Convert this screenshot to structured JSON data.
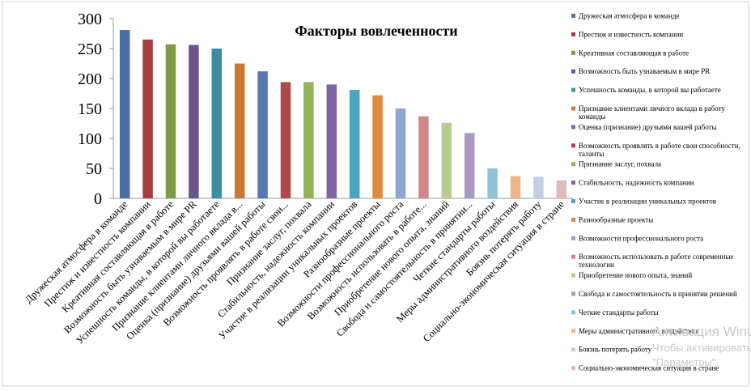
{
  "chart_data": {
    "type": "bar",
    "title": "Факторы вовлеченности",
    "xlabel": "",
    "ylabel": "",
    "ylim": [
      0,
      300
    ],
    "yticks": [
      0,
      50,
      100,
      150,
      200,
      250,
      300
    ],
    "grid": false,
    "legend_position": "right",
    "categories": [
      "Дружеская атмосфера в команде",
      "Престиж и известность компании",
      "Креативная составляющая в работе",
      "Возможность быть узнаваемым в мире PR",
      "Успешность команды, в которой вы работаете",
      "Признание клиентами личного вклада в работу команды",
      "Оценка (признание) друзьями вашей работы",
      "Возможность проявлять в работе свои способности, таланты",
      "Признание заслуг, похвала",
      "Стабильность, надежность компании",
      "Участие в реализации уникальных проектов",
      "Разнообразные проекты",
      "Возможности профессионального роста",
      "Возможность использовать в работе современные технологии",
      "Приобретение нового опыта, знаний",
      "Свобода и самостоятельность в принятии решений",
      "Четкие стандарты работы",
      "Меры административного воздействия",
      "Боязнь потерять работу",
      "Социально-экономическая ситуация в стране"
    ],
    "axis_labels": [
      "Дружеская атмосфера в команде",
      "Престиж и известность компании",
      "Креативная составляющая в работе",
      "Возможность быть узнаваемым в мире PR",
      "Успешность команды, в которой вы работаете",
      "Признание клиентами личного вклада в...",
      "Оценка (признание) друзьями вашей работы",
      "Возможность проявлять в работе свои...",
      "Признание заслуг, похвала",
      "Стабильность, надежность компании",
      "Участие в реализации уникальных проектов",
      "Разнообразные проекты",
      "Возможности профессионального роста",
      "Возможность использовать в работе...",
      "Приобретение нового опыта, знаний",
      "Свобода и самостоятельность в принятии...",
      "Четкие стандарты работы",
      "Меры административного воздействия",
      "Боязнь потерять работу",
      "Социально-экономическая ситуация в стране"
    ],
    "values": [
      281,
      265,
      257,
      256,
      250,
      225,
      212,
      194,
      194,
      190,
      181,
      172,
      150,
      137,
      126,
      109,
      50,
      37,
      36,
      30
    ],
    "colors": [
      "#4a6fa5",
      "#a5403f",
      "#7f9a45",
      "#6c548c",
      "#3c8fa0",
      "#cb7a34",
      "#5679b0",
      "#b04a48",
      "#92b357",
      "#7e64a0",
      "#4aa5bd",
      "#e08a3d",
      "#8ea6cb",
      "#cc8887",
      "#b6cc90",
      "#a999c0",
      "#8fc5d6",
      "#f1b48a",
      "#c5cee0",
      "#e0bab9"
    ]
  },
  "watermark": {
    "line1": "Активация Windo",
    "line2": "Чтобы активировать W",
    "line3": "\"Параметры\"."
  }
}
